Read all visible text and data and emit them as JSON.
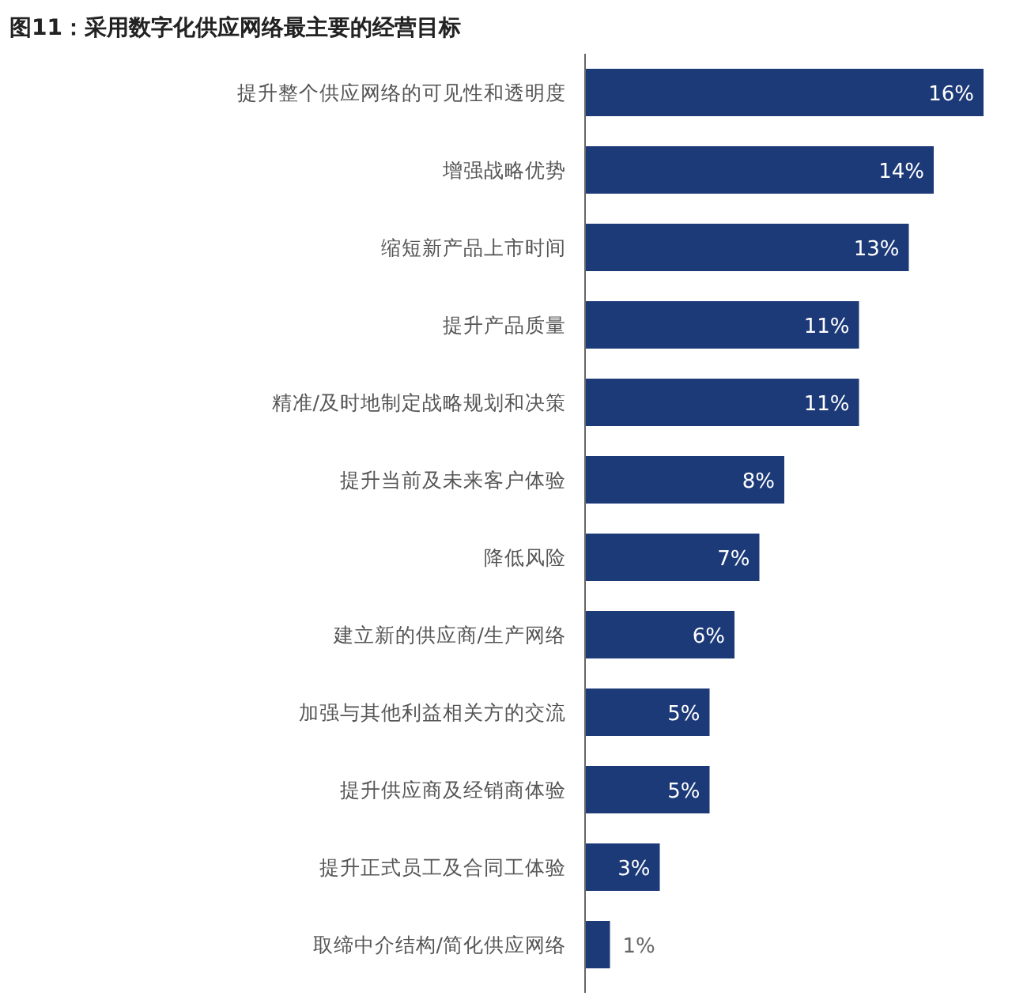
{
  "chart_data": {
    "type": "bar",
    "orientation": "horizontal",
    "title": "图11：采用数字化供应网络最主要的经营目标",
    "categories": [
      "提升整个供应网络的可见性和透明度",
      "增强战略优势",
      "缩短新产品上市时间",
      "提升产品质量",
      "精准/及时地制定战略规划和决策",
      "提升当前及未来客户体验",
      "降低风险",
      "建立新的供应商/生产网络",
      "加强与其他利益相关方的交流",
      "提升供应商及经销商体验",
      "提升正式员工及合同工体验",
      "取缔中介结构/简化供应网络"
    ],
    "values": [
      16,
      14,
      13,
      11,
      11,
      8,
      7,
      6,
      5,
      5,
      3,
      1
    ],
    "value_labels": [
      "16%",
      "14%",
      "13%",
      "11%",
      "11%",
      "8%",
      "7%",
      "6%",
      "5%",
      "5%",
      "3%",
      "1%"
    ],
    "color": "#1c3978"
  }
}
